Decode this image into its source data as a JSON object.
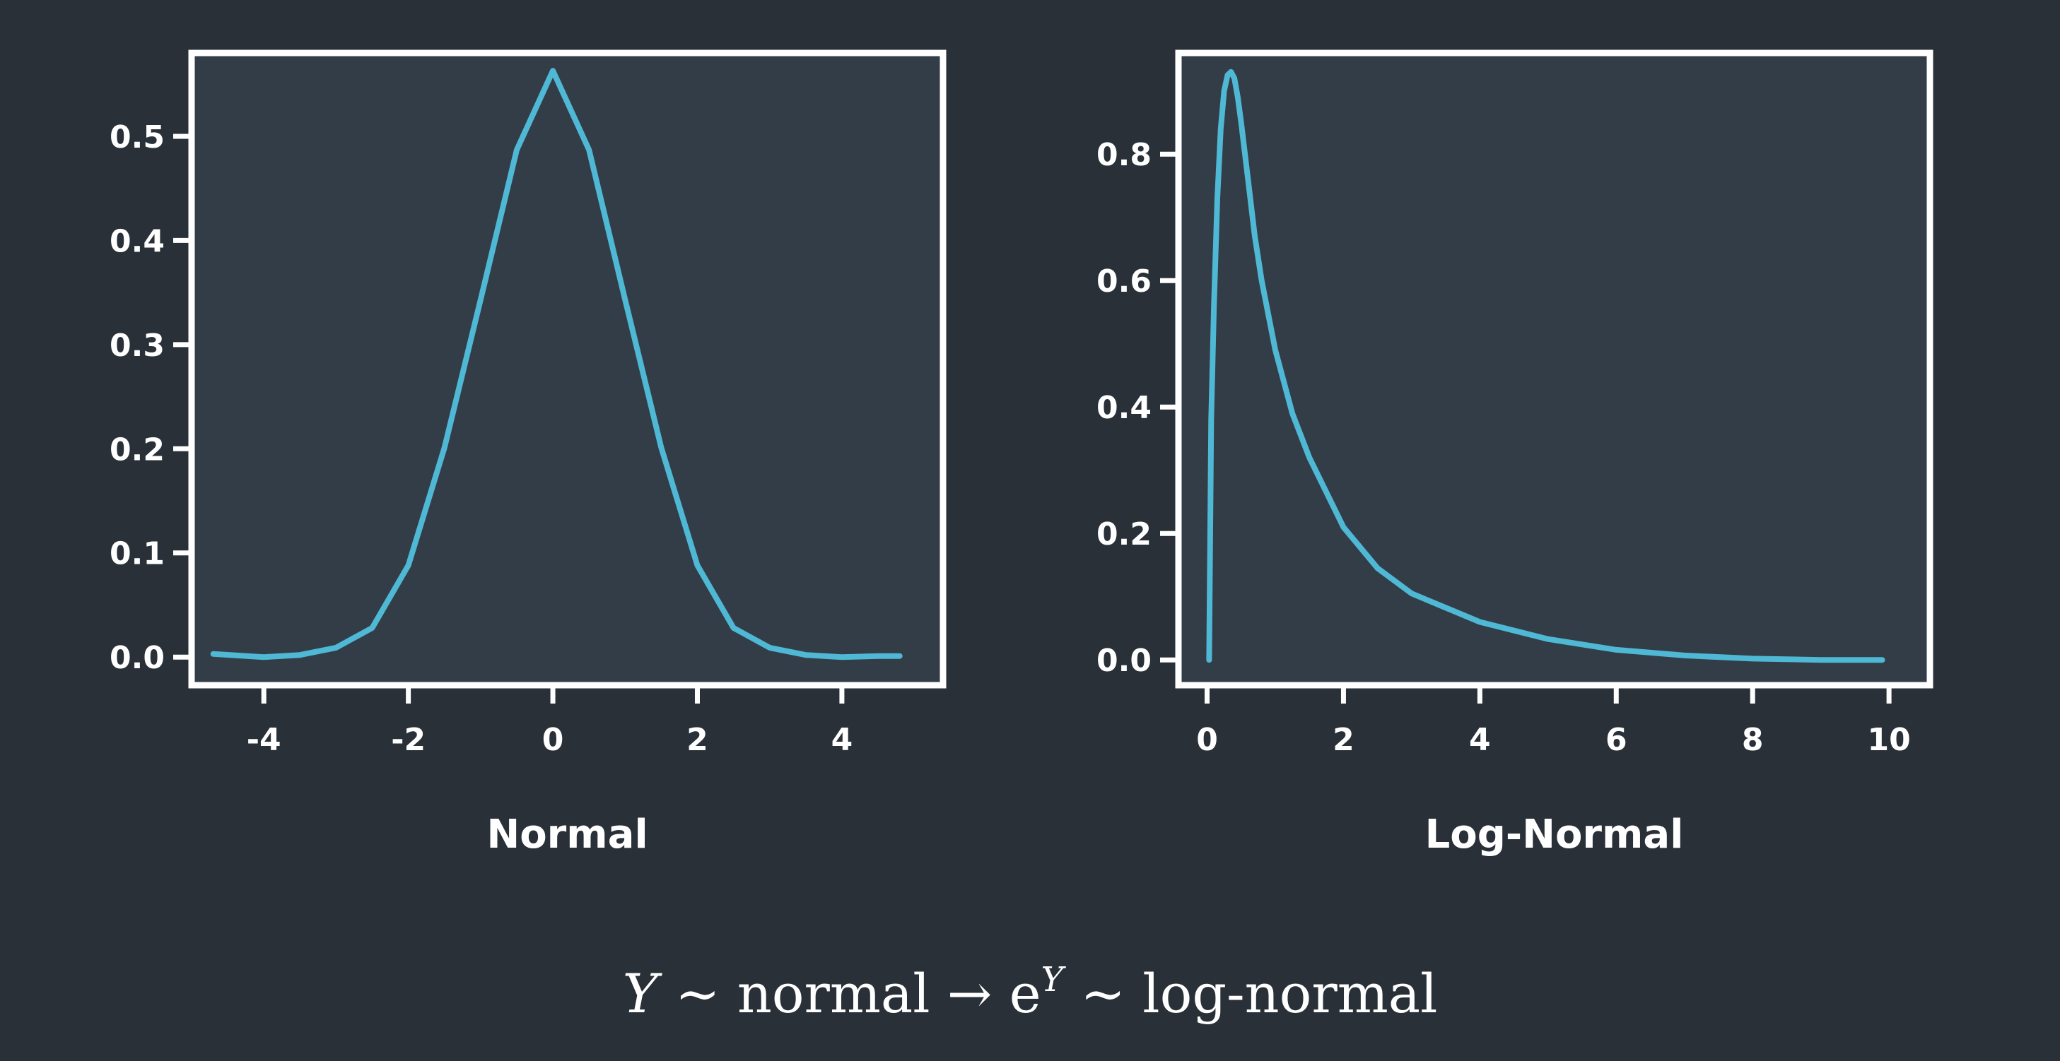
{
  "colors": {
    "background": "#293038",
    "panel": "#333d48",
    "frame": "#ffffff",
    "curve": "#4fb8d4",
    "text": "#ffffff"
  },
  "chart_data": [
    {
      "type": "line",
      "xlabel": "Normal",
      "ylabel": "",
      "xlim": [
        -5.0,
        5.4
      ],
      "ylim": [
        -0.027,
        0.58
      ],
      "xticks": [
        -4,
        -2,
        0,
        2,
        4
      ],
      "yticks": [
        0.0,
        0.1,
        0.2,
        0.3,
        0.4,
        0.5
      ],
      "xtick_labels": [
        "-4",
        "-2",
        "0",
        "2",
        "4"
      ],
      "ytick_labels": [
        "0.0",
        "0.1",
        "0.2",
        "0.3",
        "0.4",
        "0.5"
      ],
      "grid": false,
      "series": [
        {
          "x": [
            -4.7,
            -4.0,
            -3.5,
            -3.0,
            -2.5,
            -2.0,
            -1.5,
            -1.0,
            -0.5,
            0.0,
            0.5,
            1.0,
            1.5,
            2.0,
            2.5,
            3.0,
            3.5,
            4.0,
            4.5,
            4.8
          ],
          "y": [
            0.003,
            0.0,
            0.002,
            0.009,
            0.028,
            0.088,
            0.201,
            0.343,
            0.487,
            0.563,
            0.487,
            0.343,
            0.201,
            0.088,
            0.028,
            0.009,
            0.002,
            0.0,
            0.001,
            0.001
          ]
        }
      ]
    },
    {
      "type": "line",
      "xlabel": "Log-Normal",
      "ylabel": "",
      "xlim": [
        -0.42,
        10.6
      ],
      "ylim": [
        -0.04,
        0.96
      ],
      "xticks": [
        0,
        2,
        4,
        6,
        8,
        10
      ],
      "yticks": [
        0.0,
        0.2,
        0.4,
        0.6,
        0.8
      ],
      "xtick_labels": [
        "0",
        "2",
        "4",
        "6",
        "8",
        "10"
      ],
      "ytick_labels": [
        "0.0",
        "0.2",
        "0.4",
        "0.6",
        "0.8"
      ],
      "grid": false,
      "series": [
        {
          "x": [
            0.03,
            0.06,
            0.1,
            0.15,
            0.2,
            0.25,
            0.3,
            0.35,
            0.4,
            0.45,
            0.5,
            0.6,
            0.7,
            0.8,
            1.0,
            1.25,
            1.5,
            2.0,
            2.5,
            3.0,
            4.0,
            5.0,
            6.0,
            7.0,
            8.0,
            9.0,
            9.9
          ],
          "y": [
            0.0,
            0.38,
            0.56,
            0.73,
            0.84,
            0.9,
            0.925,
            0.93,
            0.92,
            0.89,
            0.85,
            0.76,
            0.67,
            0.6,
            0.49,
            0.39,
            0.32,
            0.21,
            0.145,
            0.105,
            0.06,
            0.033,
            0.016,
            0.007,
            0.002,
            0.0,
            0.0
          ]
        }
      ]
    }
  ],
  "formula": {
    "y1": "Y",
    "sim1": "∼",
    "word1": "normal",
    "arrow": "→",
    "base": "e",
    "exp": "Y",
    "sim2": "∼",
    "word2": "log-normal"
  }
}
